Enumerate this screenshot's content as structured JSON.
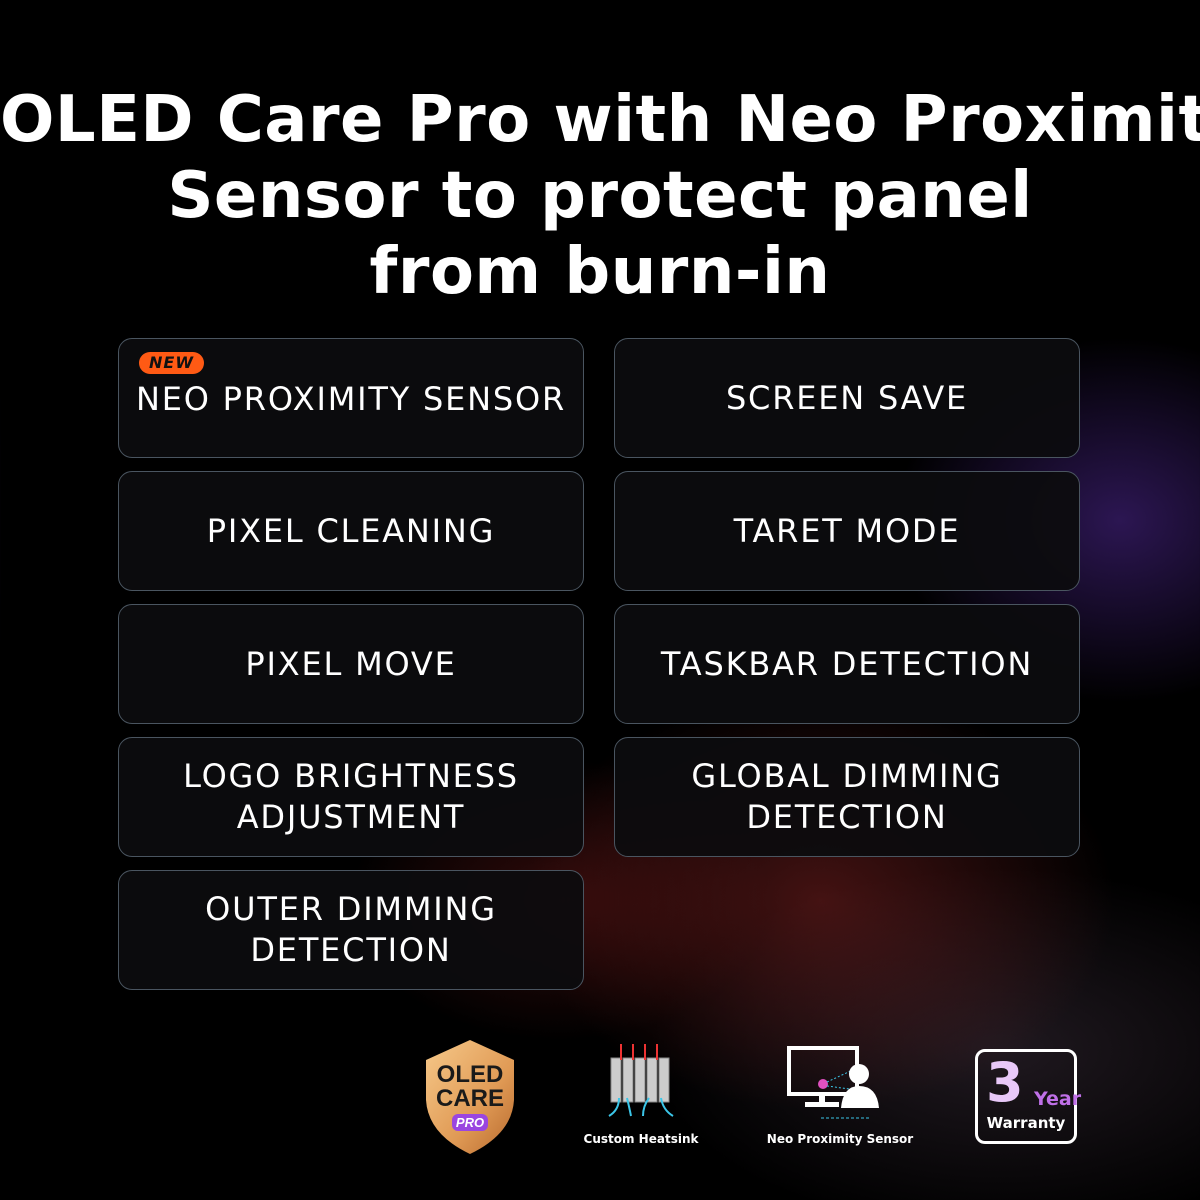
{
  "title": {
    "line1": "OLED Care Pro with Neo Proximity",
    "line2": "Sensor to protect panel",
    "line3": "from burn-in"
  },
  "features": [
    {
      "label": "NEO PROXIMITY SENSOR",
      "badge": "NEW"
    },
    {
      "label": "SCREEN SAVE"
    },
    {
      "label": "PIXEL CLEANING"
    },
    {
      "label": "TARET MODE"
    },
    {
      "label": "PIXEL MOVE"
    },
    {
      "label": "TASKBAR DETECTION"
    },
    {
      "label": "LOGO BRIGHTNESS\nADJUSTMENT"
    },
    {
      "label": "GLOBAL DIMMING\nDETECTION"
    },
    {
      "label": "OUTER DIMMING\nDETECTION"
    }
  ],
  "badges": {
    "oled_care": {
      "line1": "OLED",
      "line2": "CARE",
      "line3": "PRO"
    },
    "heatsink": {
      "label": "Custom Heatsink"
    },
    "sensor": {
      "label": "Neo Proximity Sensor"
    },
    "warranty": {
      "number": "3",
      "unit": "Year",
      "label": "Warranty"
    }
  },
  "colors": {
    "accent": "#ff5a14",
    "gold": "#e8a860"
  }
}
